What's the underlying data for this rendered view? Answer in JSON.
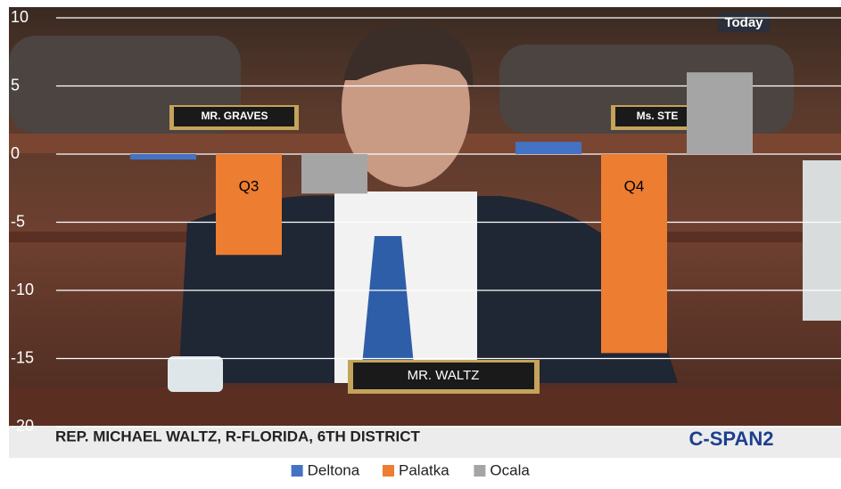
{
  "chart_data": {
    "type": "bar",
    "categories": [
      "Q3",
      "Q4"
    ],
    "series": [
      {
        "name": "Deltona",
        "color": "#4472c4",
        "values": [
          -0.4,
          0.9
        ]
      },
      {
        "name": "Palatka",
        "color": "#ed7d31",
        "values": [
          -7.4,
          -14.6
        ]
      },
      {
        "name": "Ocala",
        "color": "#a5a5a5",
        "values": [
          -2.9,
          6.0
        ]
      }
    ],
    "ylim": [
      -20,
      10
    ],
    "yticks": [
      -20,
      -15,
      -10,
      -5,
      0,
      5,
      10
    ],
    "grid": true,
    "legend": "bottom"
  },
  "background_texts": {
    "clock": "Today",
    "left_nameplate": "MR. GRAVES",
    "right_nameplate": "Ms. STE",
    "center_nameplate": "MR. WALTZ",
    "caption": "REP. MICHAEL WALTZ, R-FLORIDA, 6TH DISTRICT",
    "network": "C-SPAN2"
  }
}
